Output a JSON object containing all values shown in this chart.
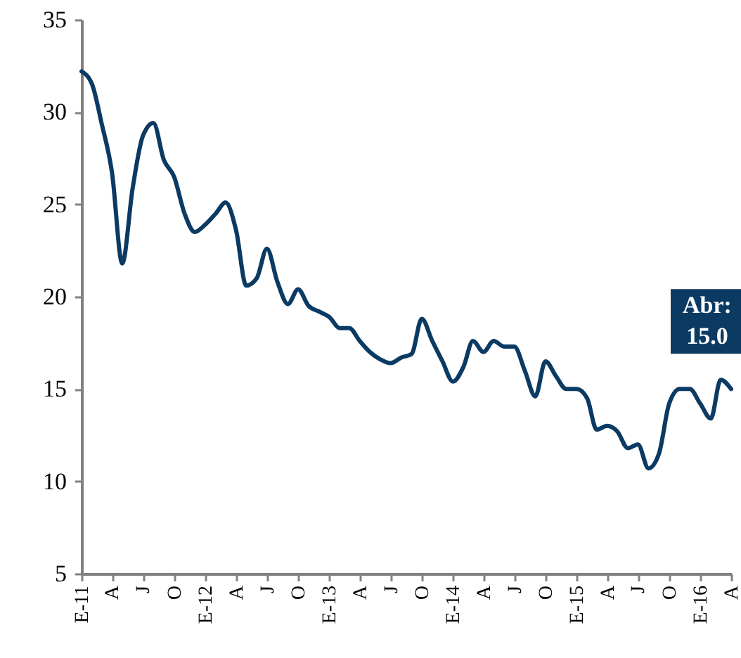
{
  "chart_data": {
    "type": "line",
    "x": [
      "2011-01",
      "2011-02",
      "2011-03",
      "2011-04",
      "2011-05",
      "2011-06",
      "2011-07",
      "2011-08",
      "2011-09",
      "2011-10",
      "2011-11",
      "2011-12",
      "2012-01",
      "2012-02",
      "2012-03",
      "2012-04",
      "2012-05",
      "2012-06",
      "2012-07",
      "2012-08",
      "2012-09",
      "2012-10",
      "2012-11",
      "2012-12",
      "2013-01",
      "2013-02",
      "2013-03",
      "2013-04",
      "2013-05",
      "2013-06",
      "2013-07",
      "2013-08",
      "2013-09",
      "2013-10",
      "2013-11",
      "2013-12",
      "2014-01",
      "2014-02",
      "2014-03",
      "2014-04",
      "2014-05",
      "2014-06",
      "2014-07",
      "2014-08",
      "2014-09",
      "2014-10",
      "2014-11",
      "2014-12",
      "2015-01",
      "2015-02",
      "2015-03",
      "2015-04",
      "2015-05",
      "2015-06",
      "2015-07",
      "2015-08",
      "2015-09",
      "2015-10",
      "2015-11",
      "2015-12",
      "2016-01",
      "2016-02",
      "2016-03",
      "2016-04"
    ],
    "series": [
      {
        "color": "#0b3a63",
        "values": [
          32.2,
          31.5,
          29.4,
          26.7,
          21.8,
          25.9,
          28.7,
          29.4,
          27.4,
          26.5,
          24.5,
          23.5,
          23.9,
          24.5,
          25.1,
          23.6,
          20.6,
          21.0,
          22.6,
          20.8,
          19.6,
          20.4,
          19.5,
          19.2,
          18.9,
          18.3,
          18.3,
          17.6,
          17.0,
          16.6,
          16.4,
          16.7,
          16.9,
          18.8,
          17.6,
          16.5,
          15.4,
          16.2,
          17.6,
          17.0,
          17.6,
          17.3,
          17.3,
          16.0,
          14.6,
          16.5,
          15.7,
          15.0,
          15.0,
          14.5,
          12.8,
          13.0,
          12.7,
          11.8,
          12.0,
          10.7,
          11.5,
          14.2,
          15.0,
          15.0,
          14.2,
          13.4,
          15.5,
          15.0
        ]
      }
    ],
    "xlim": [
      "2011-01",
      "2016-04"
    ],
    "xticks": [
      {
        "value": "2011-01",
        "label": "E-11"
      },
      {
        "value": "2011-04",
        "label": "A"
      },
      {
        "value": "2011-07",
        "label": "J"
      },
      {
        "value": "2011-10",
        "label": "O"
      },
      {
        "value": "2012-01",
        "label": "E-12"
      },
      {
        "value": "2012-04",
        "label": "A"
      },
      {
        "value": "2012-07",
        "label": "J"
      },
      {
        "value": "2012-10",
        "label": "O"
      },
      {
        "value": "2013-01",
        "label": "E-13"
      },
      {
        "value": "2013-04",
        "label": "A"
      },
      {
        "value": "2013-07",
        "label": "J"
      },
      {
        "value": "2013-10",
        "label": "O"
      },
      {
        "value": "2014-01",
        "label": "E-14"
      },
      {
        "value": "2014-04",
        "label": "A"
      },
      {
        "value": "2014-07",
        "label": "J"
      },
      {
        "value": "2014-10",
        "label": "O"
      },
      {
        "value": "2015-01",
        "label": "E-15"
      },
      {
        "value": "2015-04",
        "label": "A"
      },
      {
        "value": "2015-07",
        "label": "J"
      },
      {
        "value": "2015-10",
        "label": "O"
      },
      {
        "value": "2016-01",
        "label": "E-16"
      },
      {
        "value": "2016-04",
        "label": "A"
      }
    ],
    "ylim": [
      5,
      35
    ],
    "yticks": [
      5,
      10,
      15,
      20,
      25,
      30,
      35
    ],
    "grid": false,
    "marker": "none",
    "line_style": "solid",
    "annotations": [
      {
        "text": "Abr: 15.0",
        "x": "2016-04",
        "y": 15.0
      }
    ]
  }
}
